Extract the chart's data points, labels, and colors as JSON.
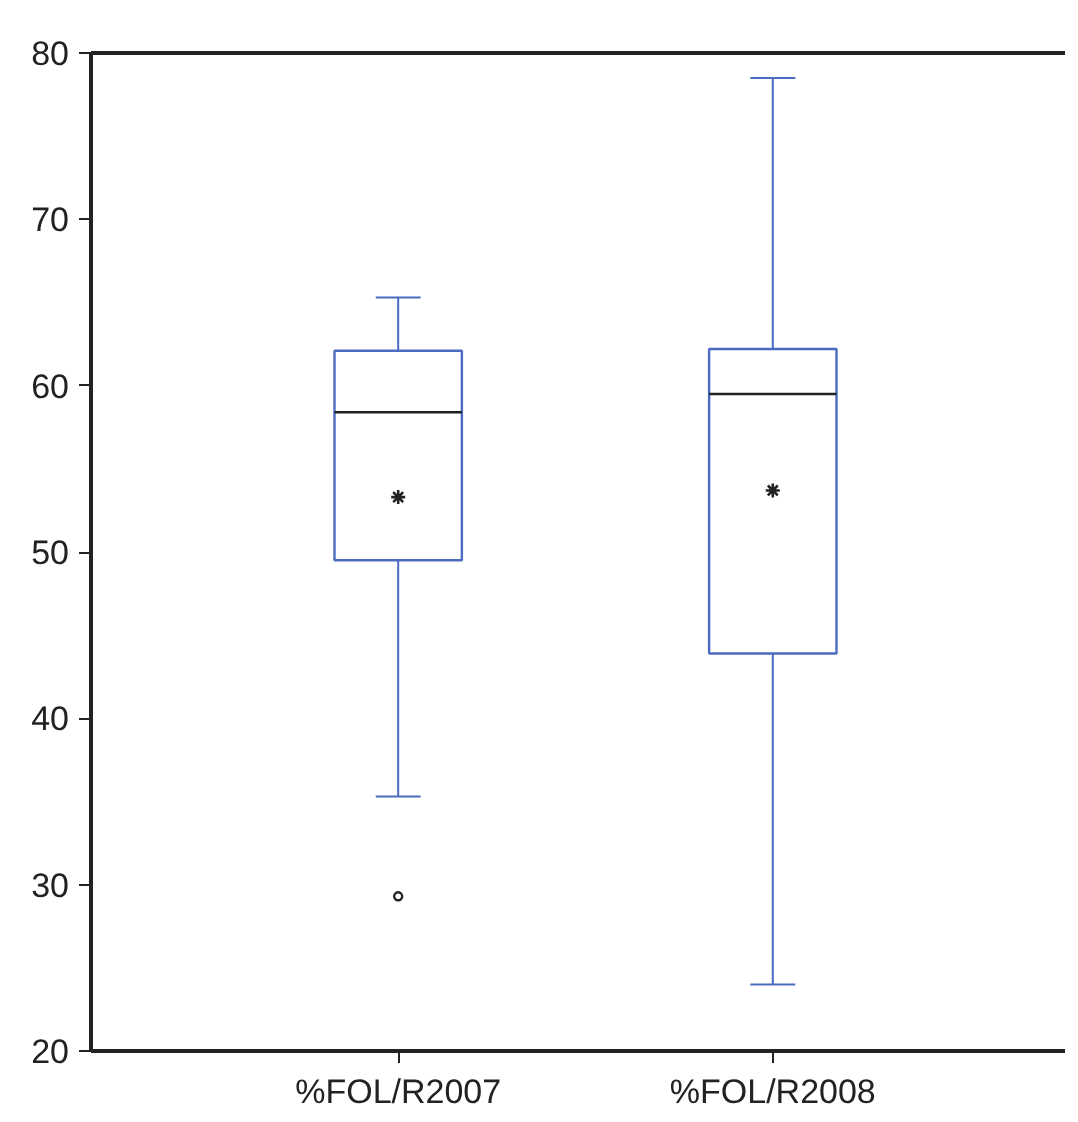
{
  "chart_data": {
    "type": "box",
    "categories": [
      "%FOL/R2007",
      "%FOL/R2008"
    ],
    "color": "#4a6bc0",
    "boxes": [
      {
        "low": 35.3,
        "q1": 49.5,
        "median": 58.4,
        "q3": 62.1,
        "high": 65.3,
        "mean": 53.3,
        "outliers": [
          29.3
        ]
      },
      {
        "low": 24.0,
        "q1": 43.9,
        "median": 59.5,
        "q3": 62.2,
        "high": 78.5,
        "mean": 53.7
      }
    ],
    "ylim": [
      20,
      80
    ],
    "yticks": [
      20,
      30,
      40,
      50,
      60,
      70,
      80
    ]
  }
}
